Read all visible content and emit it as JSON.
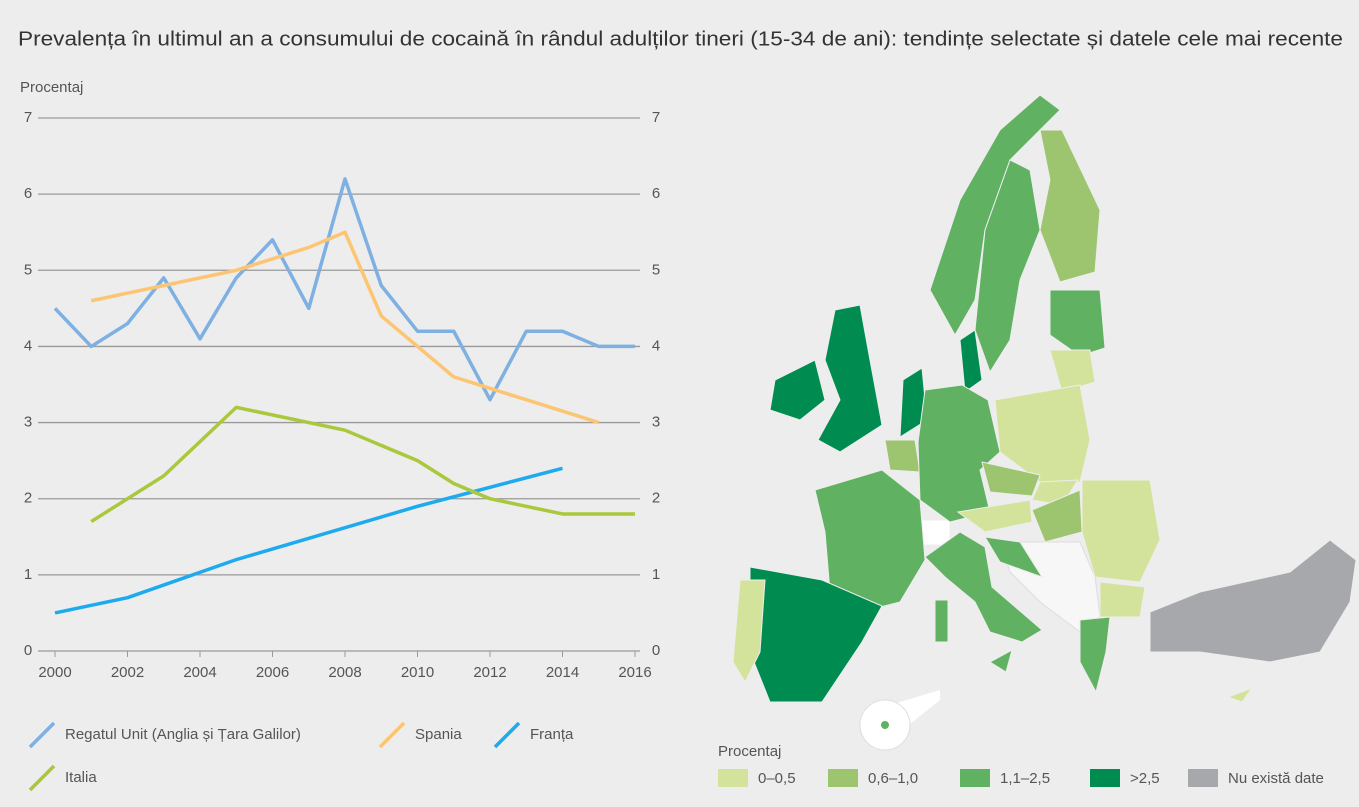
{
  "chart_data": {
    "type": "line",
    "title": "Prevalența în ultimul an a consumului de cocaină în rândul adulților tineri (15-34 de ani): tendințe selectate și datele cele mai recente",
    "y_label": "Procentaj",
    "xlim": [
      2000,
      2016
    ],
    "xticks": [
      2000,
      2002,
      2004,
      2006,
      2008,
      2010,
      2012,
      2014,
      2016
    ],
    "ylim": [
      0,
      7
    ],
    "yticks": [
      0,
      1,
      2,
      3,
      4,
      5,
      6,
      7
    ],
    "y2lim": [
      0,
      7
    ],
    "y2ticks": [
      0,
      1,
      2,
      3,
      4,
      5,
      6,
      7
    ],
    "grid": true,
    "series": [
      {
        "name": "Regatul Unit (Anglia și Țara Galilor)",
        "color": "#7eb0e2",
        "x": [
          2000,
          2001,
          2002,
          2003,
          2004,
          2005,
          2006,
          2007,
          2008,
          2009,
          2010,
          2011,
          2012,
          2013,
          2014,
          2015,
          2016
        ],
        "values": [
          4.5,
          4.0,
          4.3,
          4.9,
          4.1,
          4.9,
          5.4,
          4.5,
          6.2,
          4.8,
          4.2,
          4.2,
          3.3,
          4.2,
          4.2,
          4.0,
          4.0
        ]
      },
      {
        "name": "Spania",
        "color": "#fcc572",
        "x": [
          2001,
          2003,
          2005,
          2007,
          2008,
          2009,
          2011,
          2013,
          2015
        ],
        "values": [
          4.6,
          4.8,
          5.0,
          5.3,
          5.5,
          4.4,
          3.6,
          3.3,
          3.0
        ]
      },
      {
        "name": "Franța",
        "color": "#1eaaee",
        "x": [
          2000,
          2002,
          2005,
          2010,
          2014
        ],
        "values": [
          0.5,
          0.7,
          1.2,
          1.9,
          2.4
        ]
      },
      {
        "name": "Italia",
        "color": "#a9c83c",
        "x": [
          2001,
          2003,
          2005,
          2008,
          2010,
          2011,
          2012,
          2014,
          2016
        ],
        "values": [
          1.7,
          2.3,
          3.2,
          2.9,
          2.5,
          2.2,
          2.0,
          1.8,
          1.8
        ]
      }
    ],
    "map": {
      "legend_title": "Procentaj",
      "legend": [
        {
          "label": "0–0,5",
          "color": "#d4e39b"
        },
        {
          "label": "0,6–1,0",
          "color": "#9dc46f"
        },
        {
          "label": "1,1–2,5",
          "color": "#60b162"
        },
        {
          "label": ">2,5",
          "color": "#008c50"
        },
        {
          "label": "Nu există date",
          "color": "#a7a8ab"
        }
      ]
    }
  }
}
